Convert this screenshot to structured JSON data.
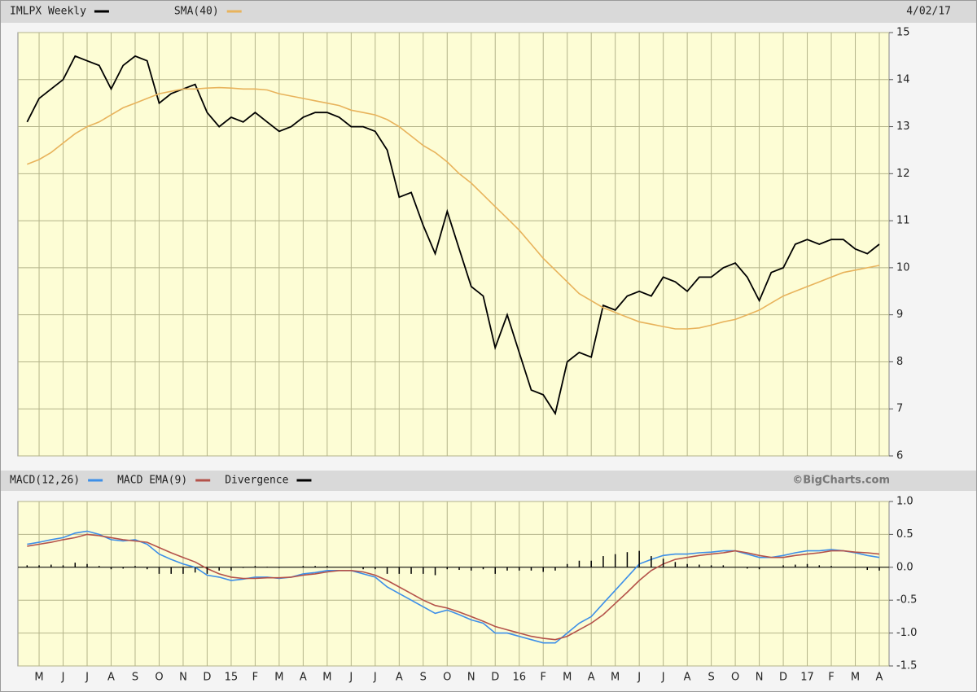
{
  "chart_data": [
    {
      "type": "line",
      "date": "4/02/17",
      "ylim": [
        6,
        15
      ],
      "yticks": [
        6,
        7,
        8,
        9,
        10,
        11,
        12,
        13,
        14,
        15
      ],
      "grid": true,
      "series": [
        {
          "name": "IMLPX Weekly",
          "color": "#000000",
          "values": [
            13.1,
            13.6,
            13.8,
            14.0,
            14.5,
            14.4,
            14.3,
            13.8,
            14.3,
            14.5,
            14.4,
            13.5,
            13.7,
            13.8,
            13.9,
            13.3,
            13.0,
            13.2,
            13.1,
            13.3,
            13.1,
            12.9,
            13.0,
            13.2,
            13.3,
            13.3,
            13.2,
            13.0,
            13.0,
            12.9,
            12.5,
            11.5,
            11.6,
            10.9,
            10.3,
            11.2,
            10.4,
            9.6,
            9.4,
            8.3,
            9.0,
            8.2,
            7.4,
            7.3,
            6.9,
            8.0,
            8.2,
            8.1,
            9.2,
            9.1,
            9.4,
            9.5,
            9.4,
            9.8,
            9.7,
            9.5,
            9.8,
            9.8,
            10.0,
            10.1,
            9.8,
            9.3,
            9.9,
            10.0,
            10.5,
            10.6,
            10.5,
            10.6,
            10.6,
            10.4,
            10.3,
            10.5
          ]
        },
        {
          "name": "SMA(40)",
          "color": "#e8b35c",
          "values": [
            12.2,
            12.3,
            12.45,
            12.65,
            12.85,
            13.0,
            13.1,
            13.25,
            13.4,
            13.5,
            13.6,
            13.7,
            13.75,
            13.8,
            13.8,
            13.82,
            13.83,
            13.82,
            13.8,
            13.8,
            13.78,
            13.7,
            13.65,
            13.6,
            13.55,
            13.5,
            13.45,
            13.35,
            13.3,
            13.25,
            13.15,
            13.0,
            12.8,
            12.6,
            12.45,
            12.25,
            12.0,
            11.8,
            11.55,
            11.3,
            11.05,
            10.8,
            10.5,
            10.2,
            9.95,
            9.7,
            9.45,
            9.3,
            9.15,
            9.05,
            8.95,
            8.85,
            8.8,
            8.75,
            8.7,
            8.7,
            8.72,
            8.78,
            8.85,
            8.9,
            9.0,
            9.1,
            9.25,
            9.4,
            9.5,
            9.6,
            9.7,
            9.8,
            9.9,
            9.95,
            10.0,
            10.05
          ]
        }
      ]
    },
    {
      "type": "line",
      "credit": "©BigCharts.com",
      "categories": [
        null,
        "M",
        null,
        "J",
        null,
        "J",
        null,
        "A",
        null,
        "S",
        null,
        "O",
        null,
        "N",
        null,
        "D",
        null,
        "15",
        null,
        "F",
        null,
        "M",
        null,
        "A",
        null,
        "M",
        null,
        "J",
        null,
        "J",
        null,
        "A",
        null,
        "S",
        null,
        "O",
        null,
        "N",
        null,
        "D",
        null,
        "16",
        null,
        "F",
        null,
        "M",
        null,
        "A",
        null,
        "M",
        null,
        "J",
        null,
        "J",
        null,
        "A",
        null,
        "S",
        null,
        "O",
        null,
        "N",
        null,
        "D",
        null,
        "17",
        null,
        "F",
        null,
        "M",
        null,
        "A"
      ],
      "ylim": [
        -1.5,
        1.0
      ],
      "yticks": [
        {
          "value": 1.0,
          "label": "1.0"
        },
        0.5,
        {
          "value": 0,
          "label": "0.0"
        },
        -0.5,
        {
          "value": -1.0,
          "label": "-1.0"
        },
        -1.5
      ],
      "grid": true,
      "series": [
        {
          "name": "MACD(12,26)",
          "color": "#3d8fe8",
          "values": [
            0.35,
            0.38,
            0.42,
            0.45,
            0.52,
            0.55,
            0.5,
            0.42,
            0.4,
            0.42,
            0.35,
            0.2,
            0.12,
            0.05,
            0.0,
            -0.12,
            -0.15,
            -0.2,
            -0.18,
            -0.15,
            -0.15,
            -0.17,
            -0.15,
            -0.1,
            -0.08,
            -0.05,
            -0.05,
            -0.05,
            -0.1,
            -0.15,
            -0.3,
            -0.4,
            -0.5,
            -0.6,
            -0.7,
            -0.65,
            -0.72,
            -0.8,
            -0.85,
            -1.0,
            -1.0,
            -1.05,
            -1.1,
            -1.15,
            -1.15,
            -1.0,
            -0.85,
            -0.75,
            -0.55,
            -0.35,
            -0.15,
            0.05,
            0.12,
            0.18,
            0.2,
            0.2,
            0.22,
            0.23,
            0.25,
            0.25,
            0.2,
            0.15,
            0.15,
            0.18,
            0.22,
            0.25,
            0.25,
            0.27,
            0.25,
            0.22,
            0.18,
            0.15
          ]
        },
        {
          "name": "MACD EMA(9)",
          "color": "#b4524a",
          "values": [
            0.32,
            0.35,
            0.38,
            0.42,
            0.45,
            0.5,
            0.48,
            0.45,
            0.42,
            0.4,
            0.38,
            0.3,
            0.22,
            0.15,
            0.08,
            -0.02,
            -0.1,
            -0.15,
            -0.17,
            -0.17,
            -0.16,
            -0.16,
            -0.15,
            -0.12,
            -0.1,
            -0.07,
            -0.05,
            -0.05,
            -0.07,
            -0.12,
            -0.2,
            -0.3,
            -0.4,
            -0.5,
            -0.58,
            -0.62,
            -0.68,
            -0.75,
            -0.82,
            -0.9,
            -0.95,
            -1.0,
            -1.05,
            -1.08,
            -1.1,
            -1.05,
            -0.95,
            -0.85,
            -0.72,
            -0.55,
            -0.38,
            -0.2,
            -0.05,
            0.05,
            0.12,
            0.15,
            0.18,
            0.2,
            0.22,
            0.25,
            0.22,
            0.18,
            0.15,
            0.15,
            0.18,
            0.2,
            0.22,
            0.25,
            0.25,
            0.23,
            0.22,
            0.2
          ]
        },
        {
          "name": "Divergence",
          "color": "#000000",
          "type": "bar",
          "values": [
            0.03,
            0.03,
            0.04,
            0.03,
            0.07,
            0.05,
            0.02,
            -0.03,
            -0.02,
            0.02,
            -0.03,
            -0.1,
            -0.1,
            -0.1,
            -0.08,
            -0.1,
            -0.05,
            -0.05,
            -0.01,
            0.02,
            0.01,
            -0.01,
            0,
            0.02,
            0.02,
            0.02,
            0,
            0,
            -0.03,
            -0.03,
            -0.1,
            -0.1,
            -0.1,
            -0.1,
            -0.12,
            -0.03,
            -0.04,
            -0.05,
            -0.03,
            -0.1,
            -0.05,
            -0.05,
            -0.05,
            -0.07,
            -0.05,
            0.05,
            0.1,
            0.1,
            0.17,
            0.2,
            0.23,
            0.25,
            0.17,
            0.13,
            0.08,
            0.05,
            0.04,
            0.03,
            0.03,
            0,
            -0.02,
            -0.03,
            0,
            0.03,
            0.04,
            0.05,
            0.03,
            0.02,
            0,
            -0.01,
            -0.04,
            -0.05
          ]
        }
      ]
    }
  ]
}
